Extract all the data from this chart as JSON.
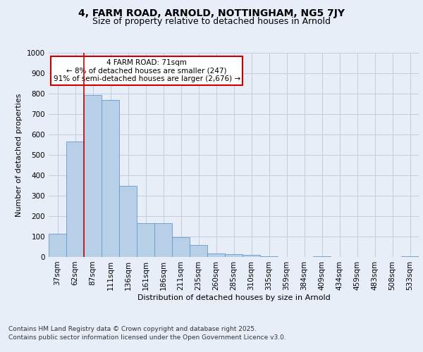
{
  "title_line1": "4, FARM ROAD, ARNOLD, NOTTINGHAM, NG5 7JY",
  "title_line2": "Size of property relative to detached houses in Arnold",
  "xlabel": "Distribution of detached houses by size in Arnold",
  "ylabel": "Number of detached properties",
  "categories": [
    "37sqm",
    "62sqm",
    "87sqm",
    "111sqm",
    "136sqm",
    "161sqm",
    "186sqm",
    "211sqm",
    "235sqm",
    "260sqm",
    "285sqm",
    "310sqm",
    "335sqm",
    "359sqm",
    "384sqm",
    "409sqm",
    "434sqm",
    "459sqm",
    "483sqm",
    "508sqm",
    "533sqm"
  ],
  "values": [
    113,
    565,
    793,
    770,
    350,
    165,
    165,
    98,
    57,
    18,
    13,
    10,
    2,
    0,
    0,
    2,
    0,
    0,
    0,
    0,
    2
  ],
  "bar_color": "#b8cfe8",
  "bar_edge_color": "#6699cc",
  "background_color": "#e8eef8",
  "grid_color": "#c0cce0",
  "vline_x": 1.5,
  "vline_color": "#cc0000",
  "annotation_title": "4 FARM ROAD: 71sqm",
  "annotation_line1": "← 8% of detached houses are smaller (247)",
  "annotation_line2": "91% of semi-detached houses are larger (2,676) →",
  "annotation_box_color": "#ffffff",
  "annotation_box_edge": "#cc0000",
  "ylim": [
    0,
    1000
  ],
  "yticks": [
    0,
    100,
    200,
    300,
    400,
    500,
    600,
    700,
    800,
    900,
    1000
  ],
  "footer_line1": "Contains HM Land Registry data © Crown copyright and database right 2025.",
  "footer_line2": "Contains public sector information licensed under the Open Government Licence v3.0.",
  "title_fontsize": 10,
  "subtitle_fontsize": 9,
  "footer_fontsize": 6.5,
  "axis_label_fontsize": 8,
  "tick_fontsize": 7.5,
  "annot_fontsize": 7.5
}
